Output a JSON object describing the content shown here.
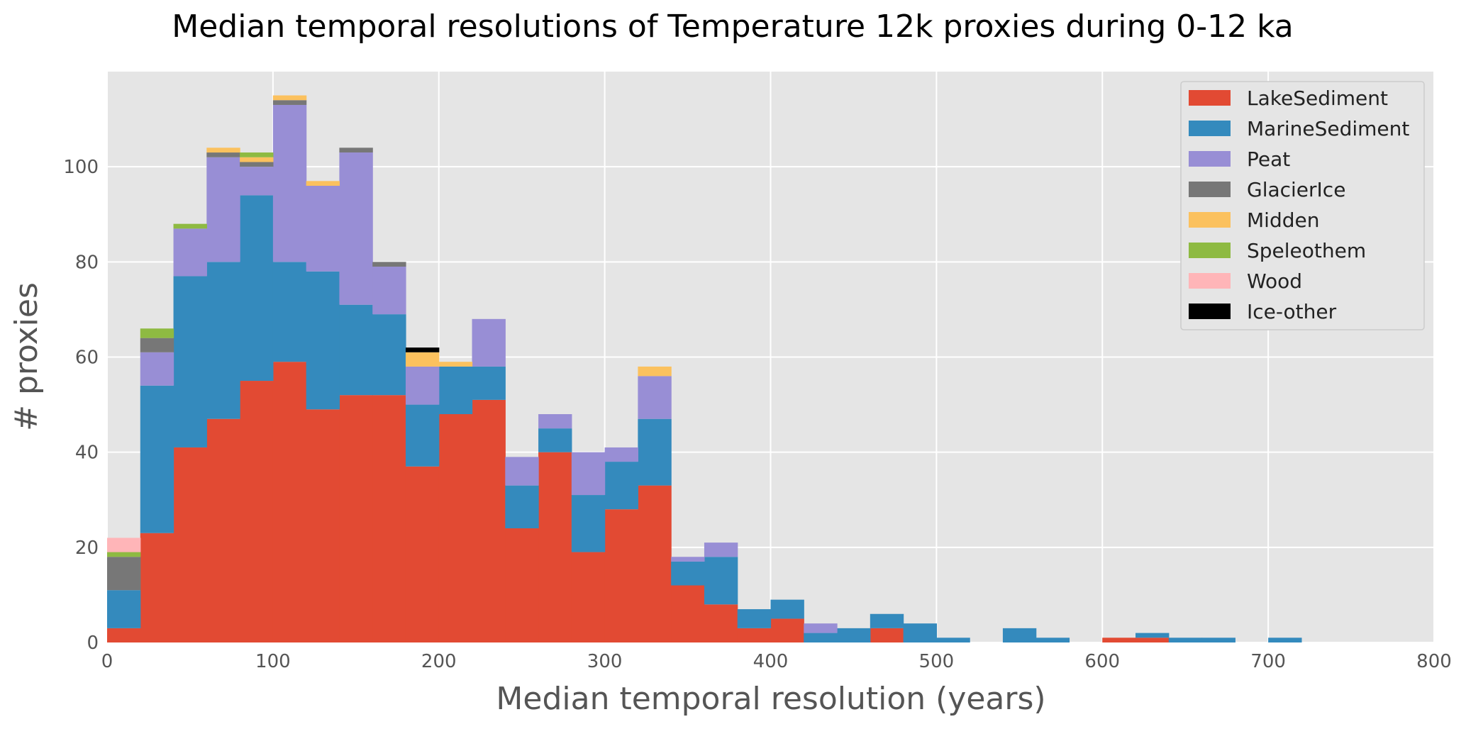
{
  "chart_data": {
    "type": "bar",
    "stacked": true,
    "title": "Median temporal resolutions of Temperature 12k proxies during 0-12 ka",
    "xlabel": "Median temporal resolution (years)",
    "ylabel": "# proxies",
    "xlim": [
      0,
      800
    ],
    "ylim": [
      0,
      120
    ],
    "xticks": [
      0,
      100,
      200,
      300,
      400,
      500,
      600,
      700,
      800
    ],
    "yticks": [
      0,
      20,
      40,
      60,
      80,
      100
    ],
    "grid": true,
    "legend_position": "top-right",
    "bin_width": 20,
    "bins_start": [
      0,
      20,
      40,
      60,
      80,
      100,
      120,
      140,
      160,
      180,
      200,
      220,
      240,
      260,
      280,
      300,
      320,
      340,
      360,
      380,
      400,
      420,
      440,
      460,
      480,
      500,
      520,
      540,
      560,
      580,
      600,
      620,
      640,
      660,
      680,
      700,
      720,
      740,
      760,
      780
    ],
    "series": [
      {
        "name": "LakeSediment",
        "color": "#E24A33",
        "values": [
          3,
          23,
          41,
          47,
          55,
          59,
          49,
          52,
          52,
          37,
          48,
          51,
          24,
          40,
          19,
          28,
          33,
          12,
          8,
          3,
          5,
          0,
          0,
          3,
          0,
          0,
          0,
          0,
          0,
          0,
          1,
          1,
          0,
          0,
          0,
          0,
          0,
          0,
          0,
          0
        ]
      },
      {
        "name": "MarineSediment",
        "color": "#348ABD",
        "values": [
          8,
          31,
          36,
          33,
          39,
          21,
          29,
          19,
          17,
          13,
          10,
          7,
          9,
          5,
          12,
          10,
          14,
          5,
          10,
          4,
          4,
          2,
          3,
          3,
          4,
          1,
          0,
          3,
          1,
          0,
          0,
          1,
          1,
          1,
          0,
          1,
          0,
          0,
          0,
          0
        ]
      },
      {
        "name": "Peat",
        "color": "#988ED5",
        "values": [
          0,
          7,
          10,
          22,
          6,
          33,
          18,
          32,
          10,
          8,
          0,
          10,
          6,
          3,
          9,
          3,
          9,
          1,
          3,
          0,
          0,
          2,
          0,
          0,
          0,
          0,
          0,
          0,
          0,
          0,
          0,
          0,
          0,
          0,
          0,
          0,
          0,
          0,
          0,
          0
        ]
      },
      {
        "name": "GlacierIce",
        "color": "#777777",
        "values": [
          7,
          3,
          0,
          1,
          1,
          1,
          0,
          1,
          1,
          0,
          0,
          0,
          0,
          0,
          0,
          0,
          0,
          0,
          0,
          0,
          0,
          0,
          0,
          0,
          0,
          0,
          0,
          0,
          0,
          0,
          0,
          0,
          0,
          0,
          0,
          0,
          0,
          0,
          0,
          0
        ]
      },
      {
        "name": "Midden",
        "color": "#FBC15E",
        "values": [
          0,
          0,
          0,
          1,
          1,
          1,
          1,
          0,
          0,
          3,
          1,
          0,
          0,
          0,
          0,
          0,
          2,
          0,
          0,
          0,
          0,
          0,
          0,
          0,
          0,
          0,
          0,
          0,
          0,
          0,
          0,
          0,
          0,
          0,
          0,
          0,
          0,
          0,
          0,
          0
        ]
      },
      {
        "name": "Speleothem",
        "color": "#8EBA42",
        "values": [
          1,
          2,
          1,
          0,
          1,
          0,
          0,
          0,
          0,
          0,
          0,
          0,
          0,
          0,
          0,
          0,
          0,
          0,
          0,
          0,
          0,
          0,
          0,
          0,
          0,
          0,
          0,
          0,
          0,
          0,
          0,
          0,
          0,
          0,
          0,
          0,
          0,
          0,
          0,
          0
        ]
      },
      {
        "name": "Wood",
        "color": "#FFB5B8",
        "values": [
          3,
          0,
          0,
          0,
          0,
          0,
          0,
          0,
          0,
          0,
          0,
          0,
          0,
          0,
          0,
          0,
          0,
          0,
          0,
          0,
          0,
          0,
          0,
          0,
          0,
          0,
          0,
          0,
          0,
          0,
          0,
          0,
          0,
          0,
          0,
          0,
          0,
          0,
          0,
          0
        ]
      },
      {
        "name": "Ice-other",
        "color": "#000000",
        "values": [
          0,
          0,
          0,
          0,
          0,
          0,
          0,
          0,
          0,
          1,
          0,
          0,
          0,
          0,
          0,
          0,
          0,
          0,
          0,
          0,
          0,
          0,
          0,
          0,
          0,
          0,
          0,
          0,
          0,
          0,
          0,
          0,
          0,
          0,
          0,
          0,
          0,
          0,
          0,
          0
        ]
      }
    ]
  }
}
